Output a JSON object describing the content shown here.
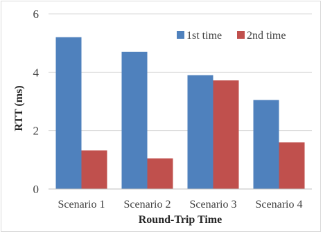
{
  "chart_data": {
    "type": "bar",
    "title": "",
    "xlabel": "Round-Trip Time",
    "ylabel": "RTT (ms)",
    "categories": [
      "Scenario 1",
      "Scenario 2",
      "Scenario 3",
      "Scenario 4"
    ],
    "series": [
      {
        "name": "1st time",
        "color": "#4f81bd",
        "values": [
          5.2,
          4.7,
          3.9,
          3.05
        ]
      },
      {
        "name": "2nd time",
        "color": "#c0504d",
        "values": [
          1.32,
          1.05,
          3.72,
          1.6
        ]
      }
    ],
    "ylim": [
      0,
      6
    ],
    "yticks": [
      0,
      2,
      4,
      6
    ],
    "grid": true,
    "legend_position": "top-right"
  }
}
